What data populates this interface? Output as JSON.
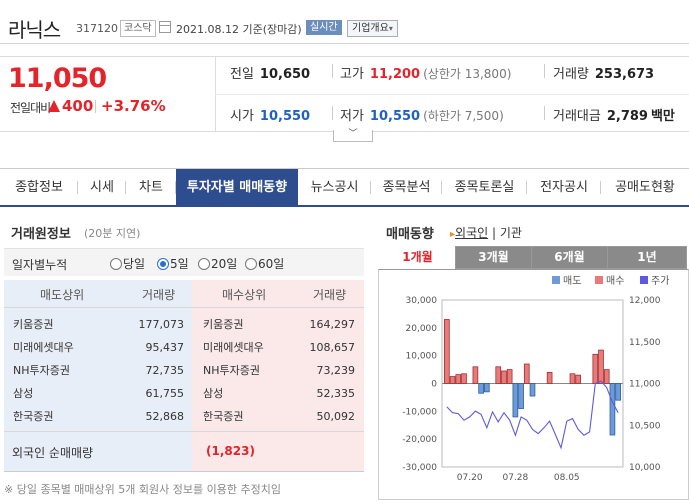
{
  "header": {
    "name": "라닉스",
    "code": "317120",
    "market": "코스닥",
    "date": "2021.08.12 기준(장마감)",
    "realtime_label": "실시간",
    "company_label": "기업개요"
  },
  "price": {
    "current": "11,050",
    "compare_label": "전일대비",
    "change": "400",
    "change_pct": "+3.76%",
    "prev_label": "전일",
    "prev": "10,650",
    "high_label": "고가",
    "high": "11,200",
    "upper_limit": "(상한가 13,800)",
    "volume_label": "거래량",
    "volume": "253,673",
    "open_label": "시가",
    "open": "10,550",
    "low_label": "저가",
    "low": "10,550",
    "lower_limit": "(하한가 7,500)",
    "amount_label": "거래대금",
    "amount": "2,789",
    "amount_unit": "백만"
  },
  "tabs": [
    "종합정보",
    "시세",
    "차트",
    "투자자별 매매동향",
    "뉴스공시",
    "종목분석",
    "종목토론실",
    "전자공시",
    "공매도현황"
  ],
  "left": {
    "title": "거래원정보",
    "note": "(20분 지연)",
    "filter_label": "일자별누적",
    "options": [
      "당일",
      "5일",
      "20일",
      "60일"
    ],
    "selected": "5일",
    "headers": {
      "sell_broker": "매도상위",
      "sell_vol": "거래량",
      "buy_broker": "매수상위",
      "buy_vol": "거래량"
    },
    "rows": [
      {
        "sell": "키움증권",
        "sell_vol": "177,073",
        "buy": "키움증권",
        "buy_vol": "164,297"
      },
      {
        "sell": "미래에셋대우",
        "sell_vol": "95,437",
        "buy": "미래에셋대우",
        "buy_vol": "108,657"
      },
      {
        "sell": "NH투자증권",
        "sell_vol": "72,735",
        "buy": "NH투자증권",
        "buy_vol": "73,239"
      },
      {
        "sell": "삼성",
        "sell_vol": "61,755",
        "buy": "삼성",
        "buy_vol": "52,335"
      },
      {
        "sell": "한국증권",
        "sell_vol": "52,868",
        "buy": "한국증권",
        "buy_vol": "50,092"
      }
    ],
    "foreign_label": "외국인 순매매량",
    "foreign_value": "(1,823)",
    "footnote": "※ 당일 종목별 매매상위 5개 회원사 정보를 이용한 추정치임"
  },
  "right": {
    "title": "매매동향",
    "sub_foreign": "외국인",
    "sub_inst": "기관",
    "period_tabs": [
      "1개월",
      "3개월",
      "6개월",
      "1년"
    ],
    "active_period": "1개월"
  },
  "colors": {
    "red": "#e4232a",
    "blue": "#2060c0",
    "sell": "#6c9bd8",
    "buy": "#e87a7a",
    "price_line": "#5b5be0",
    "tab_active": "#2d4d8f"
  },
  "chart_data": {
    "type": "bar",
    "legend": [
      "매도",
      "매수",
      "주가"
    ],
    "legend_position": "top-right",
    "x_ticks": [
      "07.20",
      "07.28",
      "08.05"
    ],
    "y_left": {
      "ticks": [
        "30,000",
        "20,000",
        "10,000",
        "0",
        "-10,000",
        "-20,000",
        "-30,000"
      ],
      "lim": [
        -30000,
        30000
      ]
    },
    "y_right": {
      "ticks": [
        "12,000",
        "11,500",
        "11,000",
        "10,500",
        "10,000"
      ],
      "lim": [
        10000,
        12000
      ]
    },
    "grid": false,
    "series": [
      {
        "name": "매도",
        "values": [
          0,
          0,
          0,
          0,
          0,
          0,
          -3500,
          -3000,
          0,
          0,
          0,
          0,
          -12000,
          -9000,
          0,
          -4500,
          0,
          0,
          0,
          0,
          0,
          0,
          0,
          0,
          0,
          0,
          0,
          0,
          0,
          -18500,
          -6000
        ]
      },
      {
        "name": "매수",
        "values": [
          23000,
          2500,
          3200,
          3500,
          0,
          6000,
          0,
          0,
          0,
          6000,
          4500,
          5000,
          0,
          0,
          7000,
          0,
          0,
          0,
          4000,
          0,
          0,
          0,
          3500,
          3000,
          0,
          0,
          10500,
          12000,
          5000,
          0,
          0
        ]
      },
      {
        "name": "주가",
        "values": [
          10720,
          10650,
          10640,
          10560,
          10600,
          10670,
          10630,
          10470,
          10660,
          10540,
          10650,
          10560,
          10380,
          10600,
          10560,
          10450,
          10400,
          10470,
          10550,
          10390,
          10230,
          10550,
          10580,
          10450,
          10380,
          10420,
          11000,
          11030,
          10950,
          10780,
          10650
        ]
      }
    ]
  }
}
